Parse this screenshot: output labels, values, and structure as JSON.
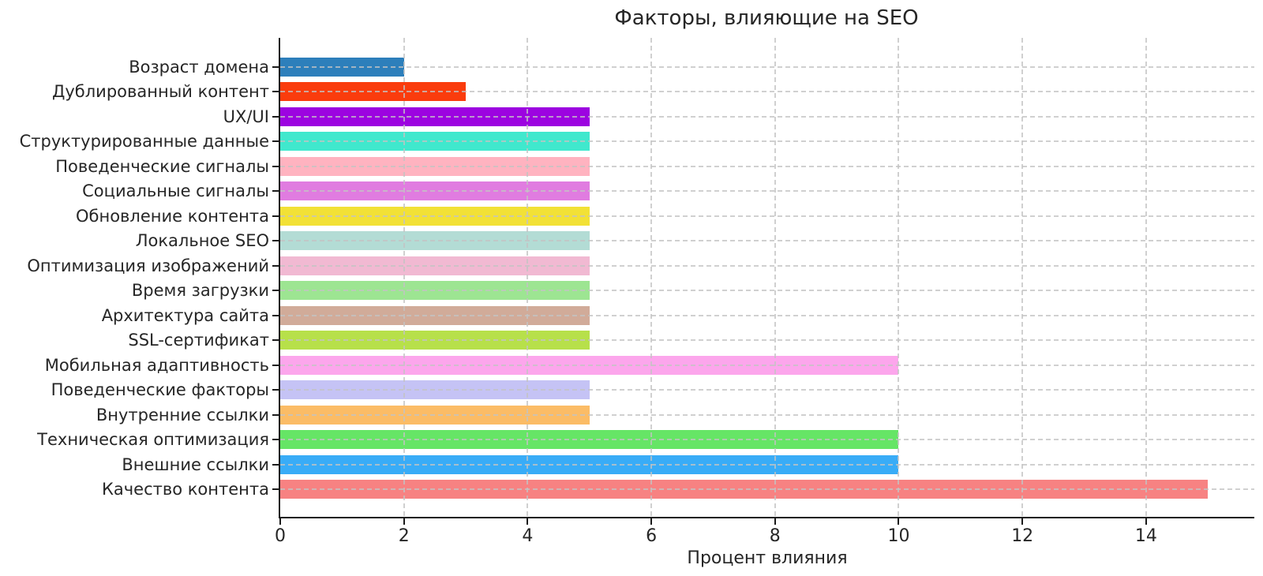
{
  "chart_data": {
    "type": "bar",
    "orientation": "horizontal",
    "title": "Факторы, влияющие на SEO",
    "xlabel": "Процент влияния",
    "ylabel": "",
    "xlim": [
      0,
      15.75
    ],
    "xticks": [
      0,
      2,
      4,
      6,
      8,
      10,
      12,
      14
    ],
    "grid": "both axes, dashed light gray, drawn above bars",
    "legend": "none",
    "categories": [
      "Возраст домена",
      "Дублированный контент",
      "UX/UI",
      "Структурированные данные",
      "Поведенческие сигналы",
      "Социальные сигналы",
      "Обновление контента",
      "Локальное SEO",
      "Оптимизация изображений",
      "Время загрузки",
      "Архитектура сайта",
      "SSL-сертификат",
      "Мобильная адаптивность",
      "Поведенческие факторы",
      "Внутренние ссылки",
      "Техническая оптимизация",
      "Внешние ссылки",
      "Качество контента"
    ],
    "values": [
      2,
      3,
      5,
      5,
      5,
      5,
      5,
      5,
      5,
      5,
      5,
      5,
      10,
      5,
      5,
      10,
      10,
      15
    ],
    "colors": [
      "#2d7fbb",
      "#fa3c0d",
      "#9c04e0",
      "#40e8cd",
      "#ffb3c0",
      "#e07ce0",
      "#f2e136",
      "#b3dcd5",
      "#f1b9d2",
      "#9de592",
      "#d1ab99",
      "#b7e04a",
      "#fca6ec",
      "#c5c3f5",
      "#fbbc66",
      "#66e566",
      "#39acf7",
      "#f78282"
    ],
    "axis_color": "#1a1a1a",
    "text_color": "#262626",
    "background": "#ffffff"
  }
}
